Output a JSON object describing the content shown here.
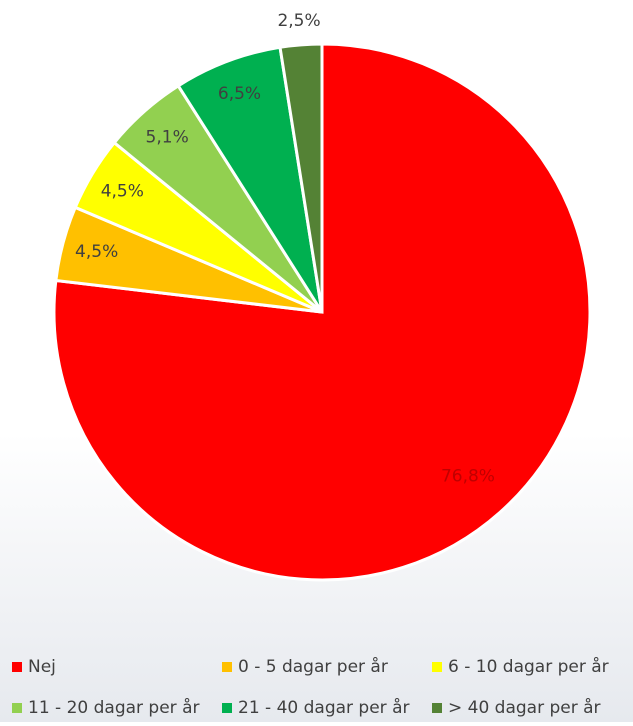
{
  "chart_data": {
    "type": "pie",
    "categories": [
      "Nej",
      "0 - 5 dagar per år",
      "6 - 10 dagar per år",
      "11 - 20 dagar per år",
      "21 - 40 dagar per år",
      "> 40 dagar per år"
    ],
    "values": [
      76.8,
      4.5,
      4.5,
      5.1,
      6.5,
      2.5
    ],
    "value_labels": [
      "76,8%",
      "4,5%",
      "4,5%",
      "5,1%",
      "6,5%",
      "2,5%"
    ],
    "colors": [
      "#ff0000",
      "#ffc000",
      "#ffff00",
      "#92d050",
      "#00b050",
      "#548235"
    ]
  }
}
